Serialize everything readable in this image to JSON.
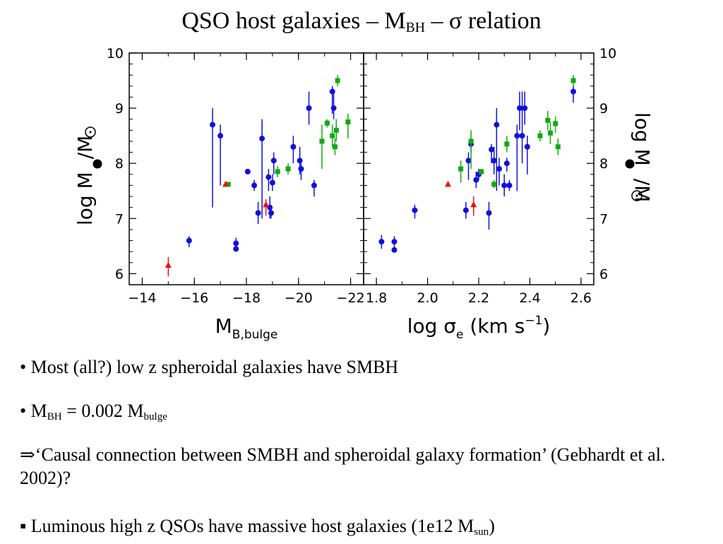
{
  "title": {
    "main": "QSO host galaxies – M",
    "sub": "BH",
    "mid": " – ",
    "sigma": "σ",
    "end": " relation"
  },
  "bullets": [
    {
      "text": "• Most (all?) low z spheroidal galaxies have SMBH"
    },
    {
      "pre": "• M",
      "sub1": "BH",
      "mid": " = 0.002 M",
      "sub2": "bulge"
    },
    {
      "arrow": "⇒",
      "text": "‘Causal connection between SMBH and spheroidal galaxy formation’  (Gebhardt et al. 2002)?"
    },
    {
      "marker": "▪",
      "pre": " Luminous high z QSOs have massive host galaxies (1e12 M",
      "sub": "sun",
      "post": ")"
    }
  ],
  "chart_data": [
    {
      "type": "scatter",
      "xlabel": "M",
      "xlabel_sub": "B,bulge",
      "ylabel": "log M",
      "ylabel_tail": "/M",
      "xlim": [
        -13.5,
        -22.5
      ],
      "ylim": [
        5.8,
        10
      ],
      "x_ticks": [
        "−14",
        "−16",
        "−18",
        "−20",
        "−22"
      ],
      "y_ticks": [
        "6",
        "7",
        "8",
        "9",
        "10"
      ],
      "colors": {
        "blue": "#1010dd",
        "green": "#10aa10",
        "red": "#ee1010"
      },
      "series": [
        {
          "color": "blue",
          "marker": "circle",
          "points": [
            {
              "x": -15.8,
              "y": 6.6,
              "lo": 6.48,
              "hi": 6.68
            },
            {
              "x": -16.7,
              "y": 8.7,
              "lo": 7.2,
              "hi": 9.0
            },
            {
              "x": -17.0,
              "y": 8.5,
              "lo": 7.6,
              "hi": 8.7
            },
            {
              "x": -17.6,
              "y": 6.55,
              "lo": 6.5,
              "hi": 6.65
            },
            {
              "x": -17.6,
              "y": 6.45,
              "lo": 6.4,
              "hi": 6.5
            },
            {
              "x": -18.05,
              "y": 7.85,
              "lo": 7.8,
              "hi": 7.9
            },
            {
              "x": -18.3,
              "y": 7.6,
              "lo": 7.5,
              "hi": 7.7
            },
            {
              "x": -18.45,
              "y": 7.1,
              "lo": 6.9,
              "hi": 7.3
            },
            {
              "x": -18.6,
              "y": 8.45,
              "lo": 7.0,
              "hi": 8.8
            },
            {
              "x": -18.85,
              "y": 7.75,
              "lo": 7.5,
              "hi": 7.9
            },
            {
              "x": -18.9,
              "y": 7.2,
              "lo": 7.0,
              "hi": 7.4
            },
            {
              "x": -18.95,
              "y": 7.1,
              "lo": 7.0,
              "hi": 7.2
            },
            {
              "x": -19.0,
              "y": 7.65,
              "lo": 7.5,
              "hi": 7.8
            },
            {
              "x": -19.05,
              "y": 8.05,
              "lo": 7.8,
              "hi": 8.2
            },
            {
              "x": -19.8,
              "y": 8.3,
              "lo": 8.0,
              "hi": 8.5
            },
            {
              "x": -20.05,
              "y": 8.05,
              "lo": 7.8,
              "hi": 8.3
            },
            {
              "x": -20.1,
              "y": 7.9,
              "lo": 7.7,
              "hi": 8.0
            },
            {
              "x": -20.4,
              "y": 9.0,
              "lo": 8.7,
              "hi": 9.3
            },
            {
              "x": -20.6,
              "y": 7.6,
              "lo": 7.4,
              "hi": 7.7
            },
            {
              "x": -21.3,
              "y": 9.3,
              "lo": 8.9,
              "hi": 9.4
            },
            {
              "x": -21.35,
              "y": 9.0,
              "lo": 8.8,
              "hi": 9.3
            }
          ]
        },
        {
          "color": "green",
          "marker": "square",
          "points": [
            {
              "x": -17.3,
              "y": 7.62,
              "lo": 7.62,
              "hi": 7.62
            },
            {
              "x": -19.2,
              "y": 7.85,
              "lo": 7.75,
              "hi": 7.95
            },
            {
              "x": -19.6,
              "y": 7.9,
              "lo": 7.8,
              "hi": 8.0
            },
            {
              "x": -20.9,
              "y": 8.4,
              "lo": 7.9,
              "hi": 8.7
            },
            {
              "x": -21.1,
              "y": 8.73,
              "lo": 8.65,
              "hi": 8.8
            },
            {
              "x": -21.3,
              "y": 8.5,
              "lo": 8.3,
              "hi": 8.7
            },
            {
              "x": -21.4,
              "y": 8.3,
              "lo": 8.15,
              "hi": 8.45
            },
            {
              "x": -21.45,
              "y": 8.6,
              "lo": 8.4,
              "hi": 8.8
            },
            {
              "x": -21.5,
              "y": 9.5,
              "lo": 9.4,
              "hi": 9.6
            },
            {
              "x": -21.9,
              "y": 8.75,
              "lo": 8.45,
              "hi": 8.9
            }
          ]
        },
        {
          "color": "red",
          "marker": "triangle",
          "points": [
            {
              "x": -15.0,
              "y": 6.15,
              "lo": 5.95,
              "hi": 6.3
            },
            {
              "x": -17.2,
              "y": 7.62,
              "lo": 7.6,
              "hi": 7.65
            },
            {
              "x": -18.75,
              "y": 7.25,
              "lo": 7.05,
              "hi": 7.35
            }
          ]
        }
      ]
    },
    {
      "type": "scatter",
      "xlabel": "log σ",
      "xlabel_sub": "e",
      "xlabel_tail": "  (km s",
      "xlabel_sup": "−1",
      "xlabel_end": ")",
      "ylabel": "log M",
      "ylabel_tail": "/M",
      "xlim": [
        1.75,
        2.65
      ],
      "ylim": [
        5.8,
        10
      ],
      "x_ticks": [
        "1.8",
        "2.0",
        "2.2",
        "2.4",
        "2.6"
      ],
      "y_ticks": [
        "6",
        "7",
        "8",
        "9",
        "10"
      ],
      "colors": {
        "blue": "#1010dd",
        "green": "#10aa10",
        "red": "#ee1010"
      },
      "series": [
        {
          "color": "blue",
          "marker": "circle",
          "points": [
            {
              "x": 1.82,
              "y": 6.58,
              "lo": 6.45,
              "hi": 6.7
            },
            {
              "x": 1.87,
              "y": 6.58,
              "lo": 6.5,
              "hi": 6.68
            },
            {
              "x": 1.87,
              "y": 6.43,
              "lo": 6.4,
              "hi": 6.5
            },
            {
              "x": 1.95,
              "y": 7.15,
              "lo": 7.0,
              "hi": 7.25
            },
            {
              "x": 2.15,
              "y": 7.15,
              "lo": 7.0,
              "hi": 7.3
            },
            {
              "x": 2.16,
              "y": 8.05,
              "lo": 7.7,
              "hi": 8.2
            },
            {
              "x": 2.17,
              "y": 8.35,
              "lo": 8.2,
              "hi": 8.45
            },
            {
              "x": 2.19,
              "y": 7.7,
              "lo": 7.55,
              "hi": 7.85
            },
            {
              "x": 2.2,
              "y": 7.8,
              "lo": 7.7,
              "hi": 7.9
            },
            {
              "x": 2.24,
              "y": 7.1,
              "lo": 6.8,
              "hi": 7.3
            },
            {
              "x": 2.25,
              "y": 8.25,
              "lo": 8.0,
              "hi": 8.35
            },
            {
              "x": 2.26,
              "y": 8.05,
              "lo": 7.8,
              "hi": 8.3
            },
            {
              "x": 2.27,
              "y": 8.7,
              "lo": 7.5,
              "hi": 9.0
            },
            {
              "x": 2.28,
              "y": 7.9,
              "lo": 7.6,
              "hi": 8.1
            },
            {
              "x": 2.3,
              "y": 7.6,
              "lo": 7.4,
              "hi": 7.8
            },
            {
              "x": 2.31,
              "y": 8.0,
              "lo": 7.85,
              "hi": 8.1
            },
            {
              "x": 2.32,
              "y": 7.6,
              "lo": 7.5,
              "hi": 7.7
            },
            {
              "x": 2.35,
              "y": 8.5,
              "lo": 7.5,
              "hi": 8.7
            },
            {
              "x": 2.36,
              "y": 9.0,
              "lo": 8.6,
              "hi": 9.3
            },
            {
              "x": 2.37,
              "y": 8.5,
              "lo": 8.0,
              "hi": 9.3
            },
            {
              "x": 2.38,
              "y": 9.0,
              "lo": 8.7,
              "hi": 9.3
            },
            {
              "x": 2.39,
              "y": 8.3,
              "lo": 7.8,
              "hi": 8.5
            },
            {
              "x": 2.57,
              "y": 9.3,
              "lo": 9.1,
              "hi": 9.4
            }
          ]
        },
        {
          "color": "green",
          "marker": "square",
          "points": [
            {
              "x": 2.13,
              "y": 7.9,
              "lo": 7.65,
              "hi": 8.05
            },
            {
              "x": 2.17,
              "y": 8.4,
              "lo": 7.9,
              "hi": 8.6
            },
            {
              "x": 2.21,
              "y": 7.85,
              "lo": 7.8,
              "hi": 7.9
            },
            {
              "x": 2.26,
              "y": 7.62,
              "lo": 7.55,
              "hi": 7.7
            },
            {
              "x": 2.31,
              "y": 8.35,
              "lo": 8.2,
              "hi": 8.5
            },
            {
              "x": 2.44,
              "y": 8.5,
              "lo": 8.4,
              "hi": 8.6
            },
            {
              "x": 2.47,
              "y": 8.78,
              "lo": 8.6,
              "hi": 8.95
            },
            {
              "x": 2.48,
              "y": 8.55,
              "lo": 8.35,
              "hi": 8.75
            },
            {
              "x": 2.5,
              "y": 8.72,
              "lo": 8.55,
              "hi": 8.85
            },
            {
              "x": 2.51,
              "y": 8.3,
              "lo": 8.15,
              "hi": 8.45
            },
            {
              "x": 2.57,
              "y": 9.5,
              "lo": 9.4,
              "hi": 9.6
            }
          ]
        },
        {
          "color": "red",
          "marker": "triangle",
          "points": [
            {
              "x": 2.08,
              "y": 7.62,
              "lo": 7.6,
              "hi": 7.65
            },
            {
              "x": 2.18,
              "y": 7.25,
              "lo": 7.05,
              "hi": 7.4
            }
          ]
        }
      ]
    }
  ]
}
